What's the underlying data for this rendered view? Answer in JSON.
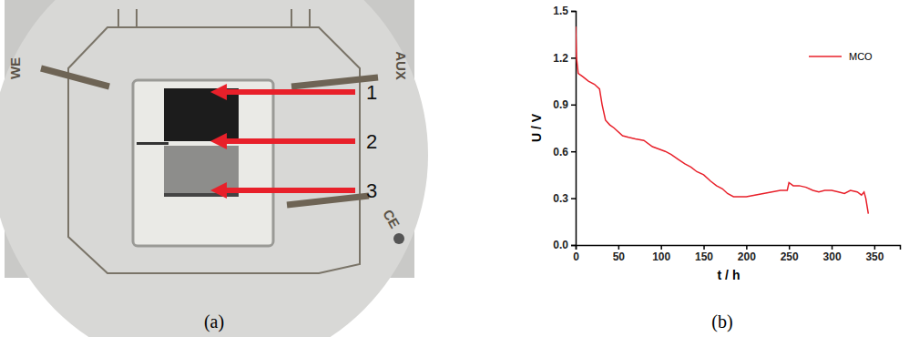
{
  "figure": {
    "panel_labels": [
      "(a)",
      "(b)"
    ]
  },
  "photo": {
    "electrode_labels": [
      "WE",
      "AUX",
      "CE"
    ],
    "callouts": [
      "1",
      "2",
      "3"
    ]
  },
  "chart_data": {
    "type": "line",
    "x_label": "t / h",
    "y_label": "U / V",
    "x": [
      0,
      1,
      3,
      8,
      15,
      22,
      28,
      31,
      35,
      40,
      45,
      55,
      62,
      70,
      80,
      90,
      95,
      105,
      112,
      120,
      128,
      135,
      142,
      150,
      158,
      165,
      172,
      178,
      185,
      192,
      200,
      210,
      220,
      230,
      240,
      248,
      250,
      255,
      262,
      270,
      278,
      285,
      292,
      300,
      308,
      315,
      322,
      330,
      335,
      338,
      340,
      343
    ],
    "series": [
      {
        "name": "MCO",
        "color": "#e8202a",
        "values": [
          1.4,
          1.2,
          1.1,
          1.08,
          1.05,
          1.03,
          1.0,
          0.9,
          0.8,
          0.77,
          0.75,
          0.7,
          0.69,
          0.68,
          0.67,
          0.63,
          0.62,
          0.6,
          0.58,
          0.55,
          0.52,
          0.5,
          0.47,
          0.45,
          0.41,
          0.38,
          0.36,
          0.33,
          0.31,
          0.31,
          0.31,
          0.32,
          0.33,
          0.34,
          0.35,
          0.35,
          0.4,
          0.38,
          0.38,
          0.37,
          0.35,
          0.34,
          0.35,
          0.35,
          0.34,
          0.33,
          0.35,
          0.34,
          0.32,
          0.34,
          0.3,
          0.2
        ]
      }
    ],
    "xlim": [
      0,
      380
    ],
    "xticks": [
      0,
      50,
      100,
      150,
      200,
      250,
      300,
      350
    ],
    "ylim": [
      0,
      1.5
    ],
    "yticks": [
      {
        "value": 0,
        "label": "0.0"
      },
      0.3,
      0.6,
      0.9,
      1.2,
      1.5
    ],
    "legend": "upper right"
  }
}
